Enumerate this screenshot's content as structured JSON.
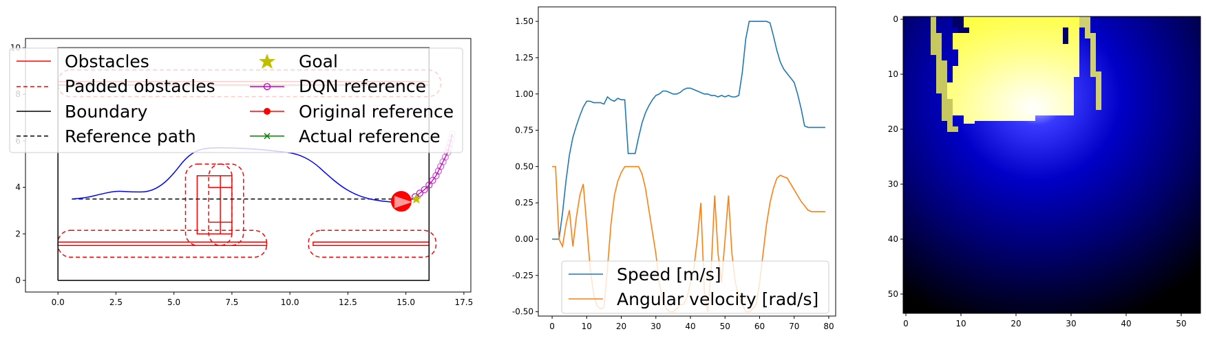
{
  "colors": {
    "obstacle": "#ff0000",
    "path": "#0000ff",
    "dqn": "#c000c0",
    "goal": "#bfbf00",
    "actual": "#008000",
    "speed": "#1f77b4",
    "angular": "#ff7f0e"
  },
  "chart_data": [
    {
      "type": "line",
      "title": "",
      "xlim": [
        -1.4,
        17.8
      ],
      "ylim": [
        -0.5,
        10.4
      ],
      "xticks": [
        0.0,
        2.5,
        5.0,
        7.5,
        10.0,
        12.5,
        15.0,
        17.5
      ],
      "xtick_labels": [
        "0.0",
        "2.5",
        "5.0",
        "7.5",
        "10.0",
        "12.5",
        "15.0",
        "17.5"
      ],
      "yticks": [
        0,
        2,
        4,
        6,
        8,
        10
      ],
      "ytick_labels": [
        "0",
        "2",
        "4",
        "6",
        "8",
        "10"
      ],
      "boundary": [
        [
          0,
          0
        ],
        [
          16,
          0
        ],
        [
          16,
          10
        ],
        [
          0,
          10
        ],
        [
          0,
          0
        ]
      ],
      "obstacles": [
        [
          [
            0,
            1.5
          ],
          [
            9,
            1.5
          ],
          [
            9,
            1.65
          ],
          [
            0,
            1.65
          ]
        ],
        [
          [
            11,
            1.5
          ],
          [
            16,
            1.5
          ],
          [
            16,
            1.65
          ],
          [
            11,
            1.65
          ]
        ],
        [
          [
            0,
            8.4
          ],
          [
            16,
            8.4
          ],
          [
            16,
            8.55
          ],
          [
            0,
            8.55
          ]
        ],
        [
          [
            6,
            2
          ],
          [
            7.5,
            2
          ],
          [
            7.5,
            4.5
          ],
          [
            6,
            4.5
          ]
        ],
        [
          [
            6.5,
            2.5
          ],
          [
            7.5,
            2.5
          ]
        ],
        [
          [
            6.5,
            4
          ],
          [
            7.5,
            4
          ]
        ],
        [
          [
            7,
            2
          ],
          [
            7,
            4.5
          ]
        ]
      ],
      "padded_obstacles": [
        [
          [
            0,
            1.0
          ],
          [
            9,
            1.0
          ],
          [
            9,
            2.15
          ],
          [
            0,
            2.15
          ]
        ],
        [
          [
            10.8,
            1.0
          ],
          [
            16.3,
            1.0
          ],
          [
            16.3,
            2.15
          ],
          [
            10.8,
            2.15
          ]
        ],
        [
          [
            0,
            7.9
          ],
          [
            16.5,
            7.9
          ],
          [
            16.5,
            9.05
          ],
          [
            0,
            9.05
          ]
        ],
        [
          [
            5.5,
            1.5
          ],
          [
            8,
            1.5
          ],
          [
            8,
            5.0
          ],
          [
            5.5,
            5.0
          ]
        ],
        [
          [
            6.5,
            1.5
          ],
          [
            7.5,
            1.5
          ],
          [
            7.5,
            5.0
          ],
          [
            6.5,
            5.0
          ]
        ]
      ],
      "reference_path": [
        [
          0.6,
          3.5
        ],
        [
          15.4,
          3.5
        ]
      ],
      "actual_path": [
        [
          0.6,
          3.5
        ],
        [
          1.2,
          3.55
        ],
        [
          1.8,
          3.7
        ],
        [
          2.5,
          3.85
        ],
        [
          3.2,
          3.8
        ],
        [
          3.9,
          3.8
        ],
        [
          4.5,
          4.1
        ],
        [
          5.0,
          4.6
        ],
        [
          5.5,
          5.25
        ],
        [
          6.0,
          5.6
        ],
        [
          6.5,
          5.7
        ],
        [
          7.5,
          5.7
        ],
        [
          8.5,
          5.65
        ],
        [
          9.5,
          5.55
        ],
        [
          10.3,
          5.45
        ],
        [
          11.0,
          5.1
        ],
        [
          11.6,
          4.55
        ],
        [
          12.2,
          4.05
        ],
        [
          12.8,
          3.7
        ],
        [
          13.4,
          3.5
        ],
        [
          14.0,
          3.4
        ],
        [
          14.6,
          3.35
        ]
      ],
      "dqn_reference": [
        [
          15.4,
          3.6
        ],
        [
          15.6,
          3.75
        ],
        [
          15.8,
          3.9
        ],
        [
          16.0,
          4.1
        ],
        [
          16.15,
          4.3
        ],
        [
          16.3,
          4.5
        ],
        [
          16.4,
          4.7
        ],
        [
          16.5,
          4.9
        ],
        [
          16.6,
          5.1
        ],
        [
          16.7,
          5.3
        ],
        [
          16.8,
          5.5
        ],
        [
          16.85,
          5.7
        ],
        [
          16.9,
          5.9
        ],
        [
          16.95,
          6.1
        ],
        [
          17.0,
          6.3
        ]
      ],
      "robot_position": [
        14.8,
        3.4
      ],
      "goal": [
        15.45,
        3.5
      ],
      "legend": [
        {
          "label": "Obstacles",
          "style": "solid-red"
        },
        {
          "label": "Padded obstacles",
          "style": "dashed-red"
        },
        {
          "label": "Boundary",
          "style": "solid-black"
        },
        {
          "label": "Reference path",
          "style": "dashed-black"
        },
        {
          "label": "Goal",
          "style": "star"
        },
        {
          "label": "DQN reference",
          "style": "circle-magenta"
        },
        {
          "label": "Original reference",
          "style": "dot-red"
        },
        {
          "label": "Actual reference",
          "style": "x-green"
        }
      ]
    },
    {
      "type": "line",
      "title": "",
      "xlim": [
        -4,
        82
      ],
      "ylim": [
        -0.53,
        1.6
      ],
      "xticks": [
        0,
        10,
        20,
        30,
        40,
        50,
        60,
        70,
        80
      ],
      "xtick_labels": [
        "0",
        "10",
        "20",
        "30",
        "40",
        "50",
        "60",
        "70",
        "80"
      ],
      "yticks": [
        -0.5,
        -0.25,
        0.0,
        0.25,
        0.5,
        0.75,
        1.0,
        1.25,
        1.5
      ],
      "ytick_labels": [
        "-0.50",
        "-0.25",
        "0.00",
        "0.25",
        "0.50",
        "0.75",
        "1.00",
        "1.25",
        "1.50"
      ],
      "legend_location": "lower right",
      "series": [
        {
          "name": "Speed [m/s]",
          "x": [
            0,
            1,
            2,
            3,
            4,
            5,
            6,
            7,
            8,
            9,
            10,
            11,
            12,
            13,
            14,
            15,
            16,
            17,
            18,
            19,
            20,
            21,
            22,
            23,
            24,
            25,
            26,
            27,
            28,
            29,
            30,
            31,
            32,
            33,
            34,
            35,
            36,
            37,
            38,
            39,
            40,
            41,
            42,
            43,
            44,
            45,
            46,
            47,
            48,
            49,
            50,
            51,
            52,
            53,
            54,
            55,
            56,
            57,
            58,
            59,
            60,
            61,
            62,
            63,
            64,
            65,
            66,
            67,
            68,
            69,
            70,
            71,
            72,
            73,
            74,
            75,
            76,
            77,
            78,
            79
          ],
          "values": [
            0.0,
            0.0,
            0.0,
            0.18,
            0.4,
            0.58,
            0.7,
            0.78,
            0.85,
            0.91,
            0.95,
            0.95,
            0.94,
            0.94,
            0.94,
            0.93,
            0.98,
            0.96,
            0.95,
            0.97,
            0.96,
            0.96,
            0.59,
            0.59,
            0.59,
            0.7,
            0.8,
            0.87,
            0.92,
            0.96,
            0.99,
            1.0,
            1.02,
            1.02,
            1.01,
            1.0,
            1.0,
            1.01,
            1.03,
            1.04,
            1.04,
            1.03,
            1.02,
            1.01,
            1.0,
            1.0,
            0.99,
            0.99,
            0.98,
            0.99,
            0.98,
            0.99,
            0.98,
            0.98,
            0.99,
            1.15,
            1.38,
            1.5,
            1.5,
            1.5,
            1.5,
            1.5,
            1.5,
            1.49,
            1.4,
            1.3,
            1.22,
            1.17,
            1.14,
            1.11,
            1.08,
            1.0,
            0.9,
            0.78,
            0.77,
            0.77,
            0.77,
            0.77,
            0.77,
            0.77
          ]
        },
        {
          "name": "Angular velocity [rad/s]",
          "x": [
            0,
            1,
            2,
            3,
            4,
            5,
            6,
            7,
            8,
            9,
            10,
            11,
            12,
            13,
            14,
            15,
            16,
            17,
            18,
            19,
            20,
            21,
            22,
            23,
            24,
            25,
            26,
            27,
            28,
            29,
            30,
            31,
            32,
            33,
            34,
            35,
            36,
            37,
            38,
            39,
            40,
            41,
            42,
            43,
            44,
            45,
            46,
            47,
            48,
            49,
            50,
            51,
            52,
            53,
            54,
            55,
            56,
            57,
            58,
            59,
            60,
            61,
            62,
            63,
            64,
            65,
            66,
            67,
            68,
            69,
            70,
            71,
            72,
            73,
            74,
            75,
            76,
            77,
            78,
            79
          ],
          "values": [
            0.5,
            0.5,
            0.0,
            -0.05,
            0.1,
            0.2,
            -0.05,
            0.15,
            0.3,
            0.38,
            0.1,
            -0.2,
            -0.38,
            -0.46,
            -0.48,
            -0.47,
            -0.2,
            0.1,
            0.3,
            0.4,
            0.46,
            0.5,
            0.5,
            0.5,
            0.5,
            0.5,
            0.45,
            0.35,
            0.2,
            0.05,
            -0.1,
            -0.3,
            -0.42,
            -0.48,
            -0.5,
            -0.5,
            -0.48,
            -0.45,
            -0.45,
            -0.4,
            -0.3,
            -0.2,
            0.0,
            0.25,
            -0.35,
            -0.5,
            -0.2,
            0.3,
            -0.1,
            -0.3,
            0.0,
            0.3,
            -0.1,
            -0.3,
            -0.4,
            -0.45,
            -0.5,
            -0.5,
            -0.48,
            -0.45,
            -0.3,
            -0.1,
            0.1,
            0.25,
            0.35,
            0.42,
            0.44,
            0.43,
            0.42,
            0.38,
            0.34,
            0.3,
            0.26,
            0.23,
            0.2,
            0.19,
            0.19,
            0.19,
            0.19,
            0.19
          ]
        }
      ]
    },
    {
      "type": "heatmap",
      "title": "",
      "xlim": [
        0,
        54
      ],
      "ylim": [
        0,
        54
      ],
      "xticks": [
        0,
        10,
        20,
        30,
        40,
        50
      ],
      "xtick_labels": [
        "0",
        "10",
        "20",
        "30",
        "40",
        "50"
      ],
      "yticks": [
        0,
        10,
        20,
        30,
        40,
        50
      ],
      "ytick_labels": [
        "0",
        "10",
        "20",
        "30",
        "40",
        "50"
      ],
      "grid_size": 54,
      "colormap": "black-blue-white-yellow",
      "bright_center": [
        24,
        16
      ]
    }
  ]
}
